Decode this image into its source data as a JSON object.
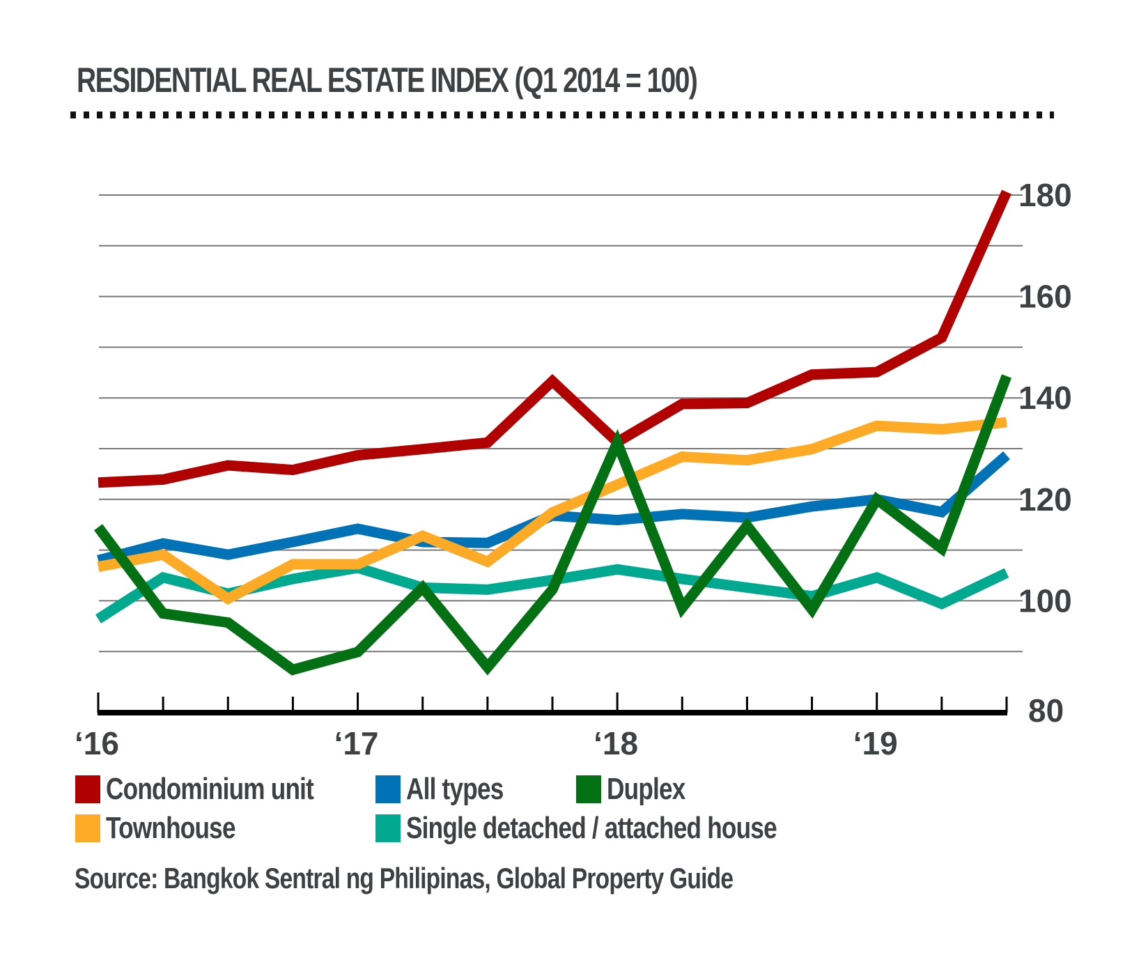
{
  "chart_data": {
    "type": "line",
    "title": "RESIDENTIAL REAL ESTATE INDEX (Q1 2014 = 100)",
    "xlabel": "",
    "ylabel": "",
    "x": [
      "Q1 2016",
      "Q2 2016",
      "Q3 2016",
      "Q4 2016",
      "Q1 2017",
      "Q2 2017",
      "Q3 2017",
      "Q4 2017",
      "Q1 2018",
      "Q2 2018",
      "Q3 2018",
      "Q4 2018",
      "Q1 2019",
      "Q2 2019",
      "Q3 2019"
    ],
    "x_tick_labels": [
      {
        "index": 0,
        "label": "‘16"
      },
      {
        "index": 4,
        "label": "‘17"
      },
      {
        "index": 8,
        "label": "‘18"
      },
      {
        "index": 12,
        "label": "‘19"
      }
    ],
    "ylim": [
      80,
      180
    ],
    "y_ticks": [
      80,
      100,
      120,
      140,
      160,
      180
    ],
    "y_gridlines": [
      90,
      100,
      110,
      120,
      130,
      140,
      150,
      160,
      170,
      180
    ],
    "y_axis_side": "right",
    "grid": true,
    "legend_position": "bottom-left",
    "series": [
      {
        "name": "Condominium unit",
        "color": "#b00000",
        "values": [
          123.3,
          123.9,
          126.7,
          125.8,
          128.7,
          129.9,
          131.2,
          143.3,
          131.3,
          138.8,
          139.0,
          144.6,
          145.1,
          151.9,
          180.6
        ]
      },
      {
        "name": "All types",
        "color": "#0072b5",
        "values": [
          108.0,
          111.3,
          109.1,
          111.6,
          114.2,
          111.6,
          111.4,
          116.8,
          115.9,
          117.1,
          116.4,
          118.6,
          120.0,
          117.5,
          128.7
        ]
      },
      {
        "name": "Duplex",
        "color": "#047014",
        "values": [
          114.5,
          97.5,
          95.7,
          86.4,
          89.9,
          102.6,
          86.9,
          102.2,
          131.2,
          98.6,
          114.8,
          98.3,
          120.0,
          110.3,
          144.3
        ]
      },
      {
        "name": "Townhouse",
        "color": "#fdab27",
        "values": [
          106.7,
          109.1,
          100.4,
          107.2,
          107.2,
          112.8,
          107.7,
          117.4,
          122.9,
          128.4,
          127.7,
          129.9,
          134.5,
          133.8,
          135.2
        ]
      },
      {
        "name": "Single detached / attached house",
        "color": "#00a98f",
        "values": [
          96.4,
          104.6,
          101.4,
          104.3,
          106.5,
          102.6,
          102.2,
          104.1,
          106.2,
          104.3,
          102.6,
          100.9,
          104.6,
          99.4,
          105.5
        ]
      }
    ],
    "draw_order": [
      "Single detached / attached house",
      "All types",
      "Townhouse",
      "Condominium unit",
      "Duplex"
    ],
    "source": "Source: Bangkok Sentral ng Philipinas, Global Property Guide"
  },
  "legend": {
    "items": [
      {
        "label": "Condominium unit",
        "color": "#b00000"
      },
      {
        "label": "All types",
        "color": "#0072b5"
      },
      {
        "label": "Duplex",
        "color": "#047014"
      },
      {
        "label": "Townhouse",
        "color": "#fdab27"
      },
      {
        "label": "Single detached / attached house",
        "color": "#00a98f"
      }
    ]
  },
  "colors": {
    "text": "#3d4143",
    "gridline": "#777777",
    "axis": "#000000"
  }
}
